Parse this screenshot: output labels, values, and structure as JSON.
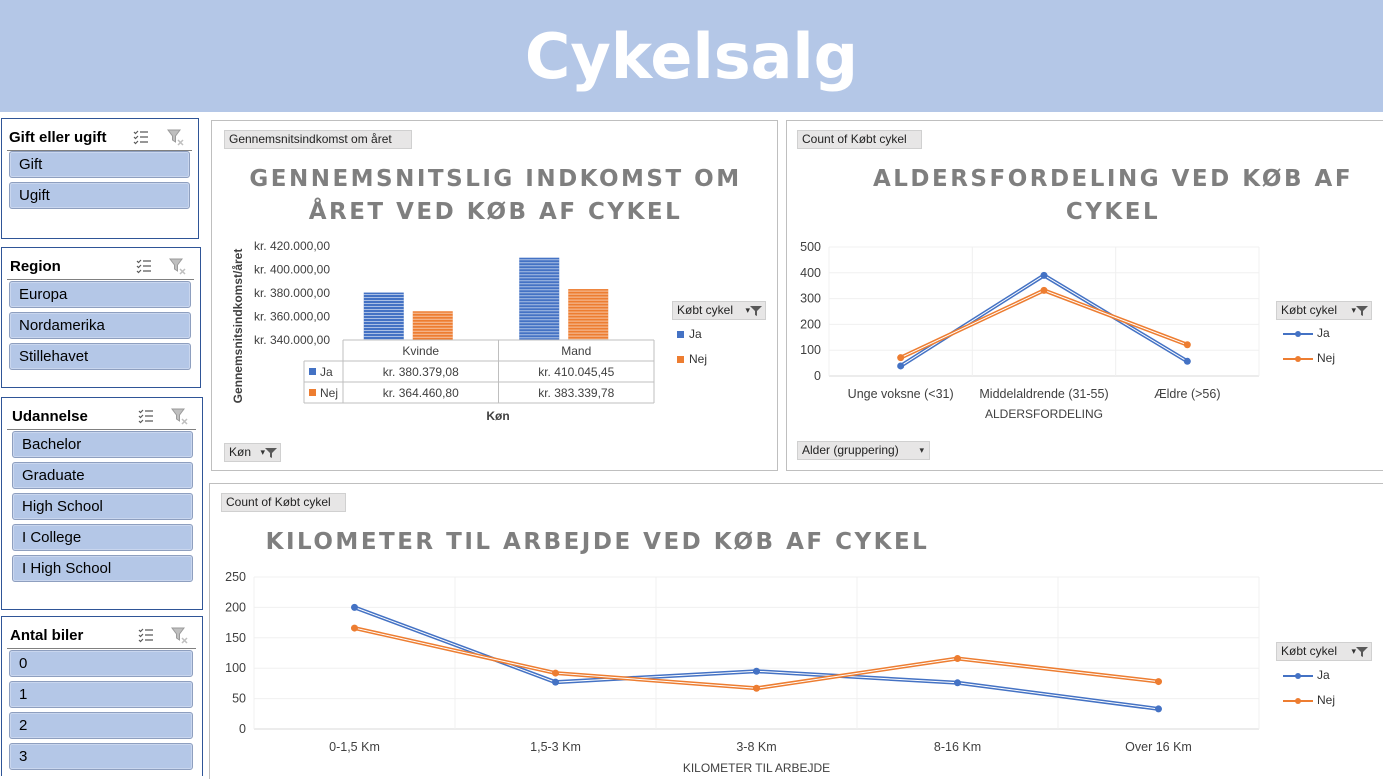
{
  "header": {
    "title": "Cykelsalg"
  },
  "slicers": [
    {
      "title": "Gift eller ugift",
      "items": [
        "Gift",
        "Ugift"
      ]
    },
    {
      "title": "Region",
      "items": [
        "Europa",
        "Nordamerika",
        "Stillehavet"
      ]
    },
    {
      "title": "Udannelse",
      "items": [
        "Bachelor",
        "Graduate",
        "High School",
        "I College",
        "I High School"
      ]
    },
    {
      "title": "Antal biler",
      "items": [
        "0",
        "1",
        "2",
        "3"
      ]
    }
  ],
  "income_chart": {
    "field_button": "Gennemsnitsindkomst om året",
    "title_line1": "GENNEMSNITSLIG INDKOMST OM",
    "title_line2": "ÅRET VED KØB AF CYKEL",
    "ylabel": "Gennemsnitsindkomst/året",
    "xlabel": "Køn",
    "axis_button": "Køn",
    "legend_title": "Købt cykel",
    "legend": [
      "Ja",
      "Nej"
    ],
    "table_rows": [
      {
        "label": "Ja",
        "cells": [
          "kr. 380.379,08",
          "kr. 410.045,45"
        ]
      },
      {
        "label": "Nej",
        "cells": [
          "kr. 364.460,80",
          "kr. 383.339,78"
        ]
      }
    ]
  },
  "age_chart": {
    "field_button": "Count of Købt cykel",
    "title_line1": "ALDERSFORDELING VED KØB AF",
    "title_line2": "CYKEL",
    "xlabel": "ALDERSFORDELING",
    "axis_button": "Alder (gruppering)",
    "legend_title": "Købt cykel",
    "legend": [
      "Ja",
      "Nej"
    ]
  },
  "km_chart": {
    "field_button": "Count of Købt cykel",
    "title": "KILOMETER TIL ARBEJDE VED KØB AF CYKEL",
    "xlabel": "KILOMETER TIL ARBEJDE",
    "legend_title": "Købt cykel",
    "legend": [
      "Ja",
      "Nej"
    ]
  },
  "colors": {
    "ja": "#4472c4",
    "nej": "#ed7d31",
    "banner": "#b4c7e7",
    "slicer_item": "#b4c7e7",
    "title_gray": "#7f7f7f"
  },
  "chart_data": [
    {
      "type": "bar",
      "categories": [
        "Kvinde",
        "Mand"
      ],
      "series": [
        {
          "name": "Ja",
          "values": [
            380379.08,
            410045.45
          ]
        },
        {
          "name": "Nej",
          "values": [
            364460.8,
            383339.78
          ]
        }
      ],
      "yticks": [
        "kr. 340.000,00",
        "kr. 360.000,00",
        "kr. 380.000,00",
        "kr. 400.000,00",
        "kr. 420.000,00"
      ],
      "ylim": [
        340000,
        420000
      ]
    },
    {
      "type": "line",
      "categories": [
        "Unge voksne (<31)",
        "Middelaldrende (31-55)",
        "Ældre (>56)"
      ],
      "series": [
        {
          "name": "Ja",
          "values": [
            39,
            390,
            57
          ]
        },
        {
          "name": "Nej",
          "values": [
            71,
            332,
            121
          ]
        }
      ],
      "yticks": [
        "0",
        "100",
        "200",
        "300",
        "400",
        "500"
      ],
      "ylim": [
        0,
        500
      ]
    },
    {
      "type": "line",
      "categories": [
        "0-1,5 Km",
        "1,5-3 Km",
        "3-8 Km",
        "8-16 Km",
        "Over 16 Km"
      ],
      "series": [
        {
          "name": "Ja",
          "values": [
            200,
            77,
            95,
            76,
            33
          ]
        },
        {
          "name": "Nej",
          "values": [
            166,
            92,
            67,
            116,
            78
          ]
        }
      ],
      "yticks": [
        "0",
        "50",
        "100",
        "150",
        "200",
        "250"
      ],
      "ylim": [
        0,
        250
      ]
    }
  ]
}
